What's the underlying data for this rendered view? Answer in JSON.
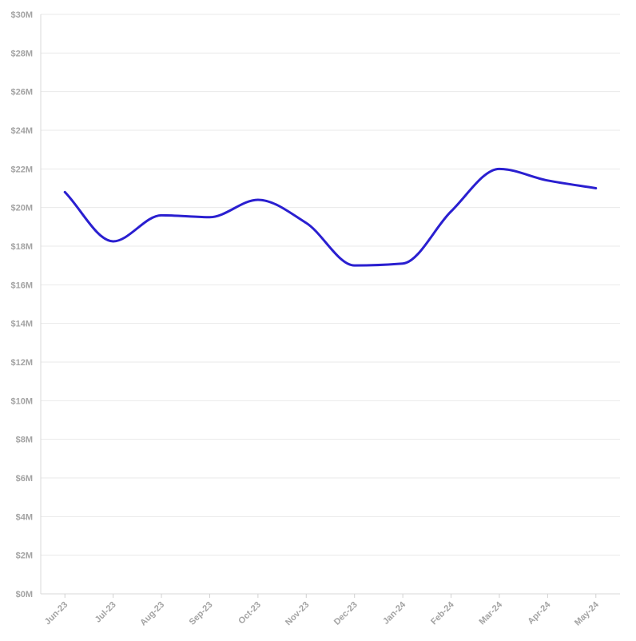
{
  "chart_data": {
    "type": "line",
    "title": "",
    "xlabel": "",
    "ylabel": "",
    "categories": [
      "Jun-23",
      "Jul-23",
      "Aug-23",
      "Sep-23",
      "Oct-23",
      "Nov-23",
      "Dec-23",
      "Jan-24",
      "Feb-24",
      "Mar-24",
      "Apr-24",
      "May-24"
    ],
    "series": [
      {
        "values": [
          20.8,
          18.25,
          19.6,
          19.5,
          20.4,
          19.2,
          17.0,
          17.1,
          19.8,
          22.0,
          21.4,
          21.0
        ]
      }
    ],
    "ylim": [
      0,
      30
    ],
    "y_ticks": [
      "$0M",
      "$2M",
      "$4M",
      "$6M",
      "$8M",
      "$10M",
      "$12M",
      "$14M",
      "$16M",
      "$18M",
      "$20M",
      "$22M",
      "$24M",
      "$26M",
      "$28M",
      "$30M"
    ],
    "grid": true,
    "legend": "none",
    "line_color": "#2a1fd0"
  }
}
